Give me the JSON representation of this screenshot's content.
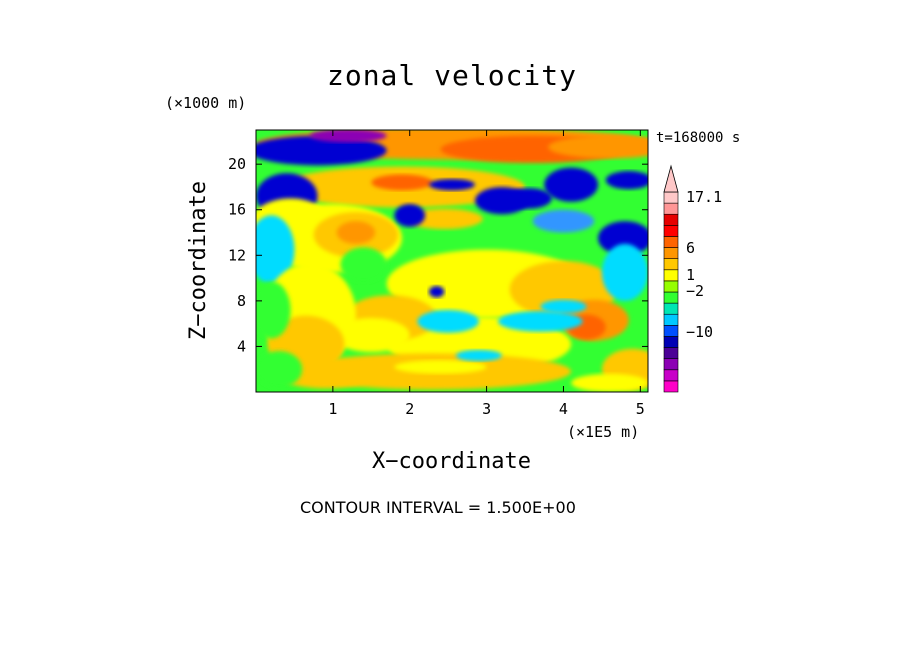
{
  "chart_data": {
    "type": "heatmap",
    "title": "zonal velocity",
    "xlabel": "X−coordinate",
    "ylabel": "Z−coordinate",
    "x_unit_label": "(×1E5 m)",
    "y_unit_label": "(×1000 m)",
    "time_label": "t=168000 s",
    "footer": "CONTOUR INTERVAL = 1.500E+00",
    "xlim": [
      0,
      5.1
    ],
    "ylim": [
      0,
      23
    ],
    "x_ticks": [
      "1",
      "2",
      "3",
      "4",
      "5"
    ],
    "y_ticks": [
      "4",
      "8",
      "12",
      "16",
      "20"
    ],
    "colorbar": {
      "labels": [
        "17.1",
        "6",
        "1",
        "−2",
        "−10"
      ],
      "colors": [
        "#ff00c8",
        "#c800c8",
        "#8c00b4",
        "#4b0096",
        "#0000b4",
        "#0050ff",
        "#00c8ff",
        "#00e6b4",
        "#32ff32",
        "#96ff00",
        "#ffff00",
        "#ffc800",
        "#ff9600",
        "#ff6400",
        "#ff0000",
        "#e60000",
        "#ff9696",
        "#ffc8c8"
      ],
      "extend_top": true
    },
    "field_colors": {
      "deep_blue": "#1a1aa0",
      "blue": "#0000d2",
      "light_blue": "#3296ff",
      "cyan": "#00dcff",
      "green": "#32ff32",
      "yellow": "#ffff00",
      "gold": "#ffc800",
      "orange": "#ff9600",
      "dark_orange": "#ff6400",
      "purple": "#8c00b4"
    }
  }
}
